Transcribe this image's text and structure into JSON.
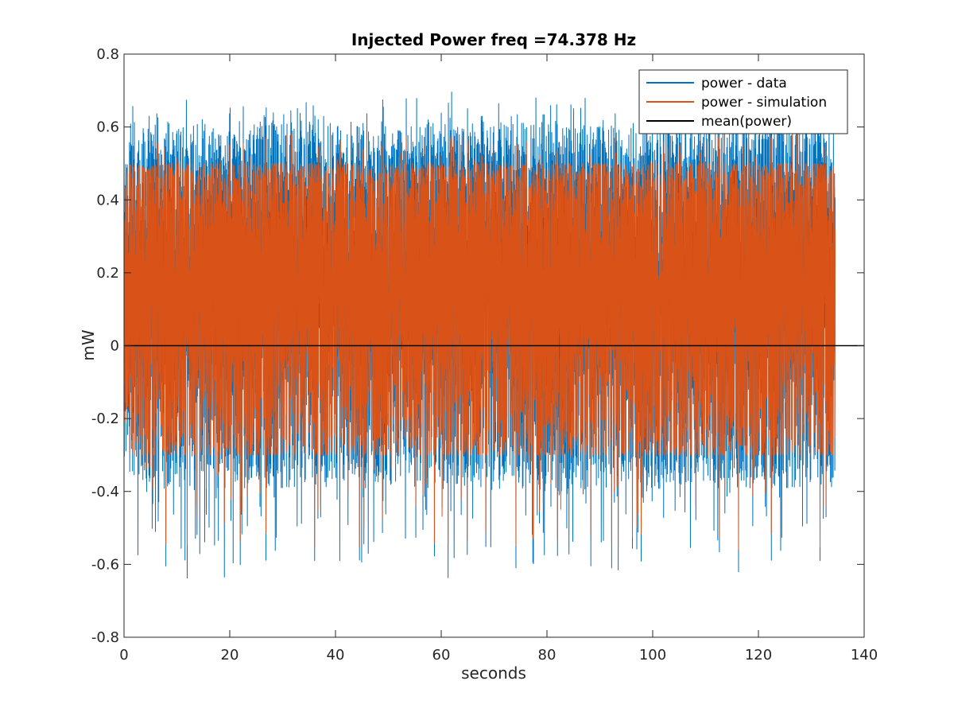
{
  "chart_data": {
    "type": "line",
    "title": "Injected Power freq =74.378 Hz",
    "xlabel": "seconds",
    "ylabel": "mW",
    "xlim": [
      0,
      140
    ],
    "ylim": [
      -0.8,
      0.8
    ],
    "xticks": [
      0,
      20,
      40,
      60,
      80,
      100,
      120,
      140
    ],
    "yticks": [
      -0.8,
      -0.6,
      -0.4,
      -0.2,
      0,
      0.2,
      0.4,
      0.6,
      0.8
    ],
    "grid": false,
    "legend_position": "top-right",
    "x_end": 134.5,
    "series": [
      {
        "name": "power - data",
        "color": "#0072bd",
        "style": "dense-oscillation",
        "typical_max": 0.6,
        "peak_max": 0.68,
        "typical_min": -0.38,
        "peak_min": -0.635,
        "peak_min_x": 19
      },
      {
        "name": "power - simulation",
        "color": "#d95319",
        "style": "dense-oscillation",
        "typical_max": 0.5,
        "peak_max": 0.58,
        "typical_min": -0.3,
        "peak_min": -0.56
      },
      {
        "name": "mean(power)",
        "color": "#000000",
        "style": "constant",
        "value": 0
      }
    ]
  }
}
